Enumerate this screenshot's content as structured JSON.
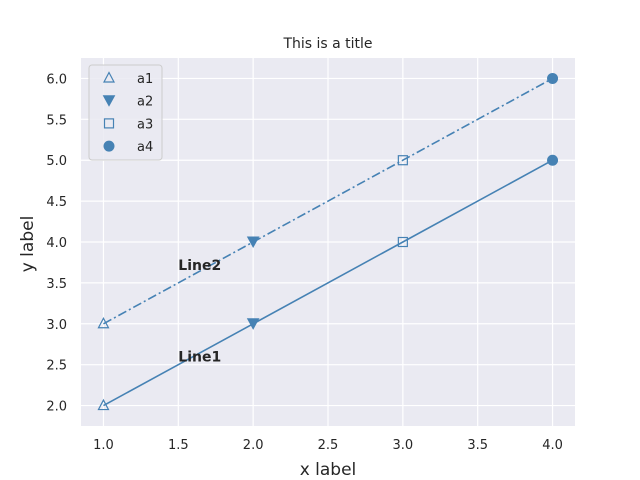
{
  "chart_data": {
    "type": "line",
    "title": "This is a title",
    "xlabel": "x label",
    "ylabel": "y label",
    "xlim": [
      0.85,
      4.15
    ],
    "ylim": [
      1.75,
      6.25
    ],
    "xticks": [
      1.0,
      1.5,
      2.0,
      2.5,
      3.0,
      3.5,
      4.0
    ],
    "xtick_labels": [
      "1.0",
      "1.5",
      "2.0",
      "2.5",
      "3.0",
      "3.5",
      "4.0"
    ],
    "yticks": [
      2.0,
      2.5,
      3.0,
      3.5,
      4.0,
      4.5,
      5.0,
      5.5,
      6.0
    ],
    "ytick_labels": [
      "2.0",
      "2.5",
      "3.0",
      "3.5",
      "4.0",
      "4.5",
      "5.0",
      "5.5",
      "6.0"
    ],
    "grid": true,
    "background": "#eaeaf2",
    "line_color": "#4682b4",
    "series": [
      {
        "x": [
          1,
          2,
          3,
          4
        ],
        "y": [
          2,
          3,
          4,
          5
        ],
        "linestyle": "solid"
      },
      {
        "x": [
          1,
          2,
          3,
          4
        ],
        "y": [
          3,
          4,
          5,
          6
        ],
        "linestyle": "dashdot"
      }
    ],
    "marker_points": [
      {
        "x": 1,
        "y": 2,
        "marker": "triangle-up-open",
        "group": "a1"
      },
      {
        "x": 1,
        "y": 3,
        "marker": "triangle-up-open",
        "group": "a1"
      },
      {
        "x": 2,
        "y": 3,
        "marker": "triangle-down-filled",
        "group": "a2"
      },
      {
        "x": 2,
        "y": 4,
        "marker": "triangle-down-filled",
        "group": "a2"
      },
      {
        "x": 3,
        "y": 4,
        "marker": "square-open",
        "group": "a3"
      },
      {
        "x": 3,
        "y": 5,
        "marker": "square-open",
        "group": "a3"
      },
      {
        "x": 4,
        "y": 5,
        "marker": "circle-filled",
        "group": "a4"
      },
      {
        "x": 4,
        "y": 6,
        "marker": "circle-filled",
        "group": "a4"
      }
    ],
    "legend": {
      "placement": "top-left",
      "entries": [
        {
          "label": "a1",
          "marker": "triangle-up-open"
        },
        {
          "label": "a2",
          "marker": "triangle-down-filled"
        },
        {
          "label": "a3",
          "marker": "square-open"
        },
        {
          "label": "a4",
          "marker": "circle-filled"
        }
      ]
    },
    "annotations": [
      {
        "text": "Line1",
        "x": 1.5,
        "y": 2.6
      },
      {
        "text": "Line2",
        "x": 1.5,
        "y": 3.72
      }
    ]
  }
}
